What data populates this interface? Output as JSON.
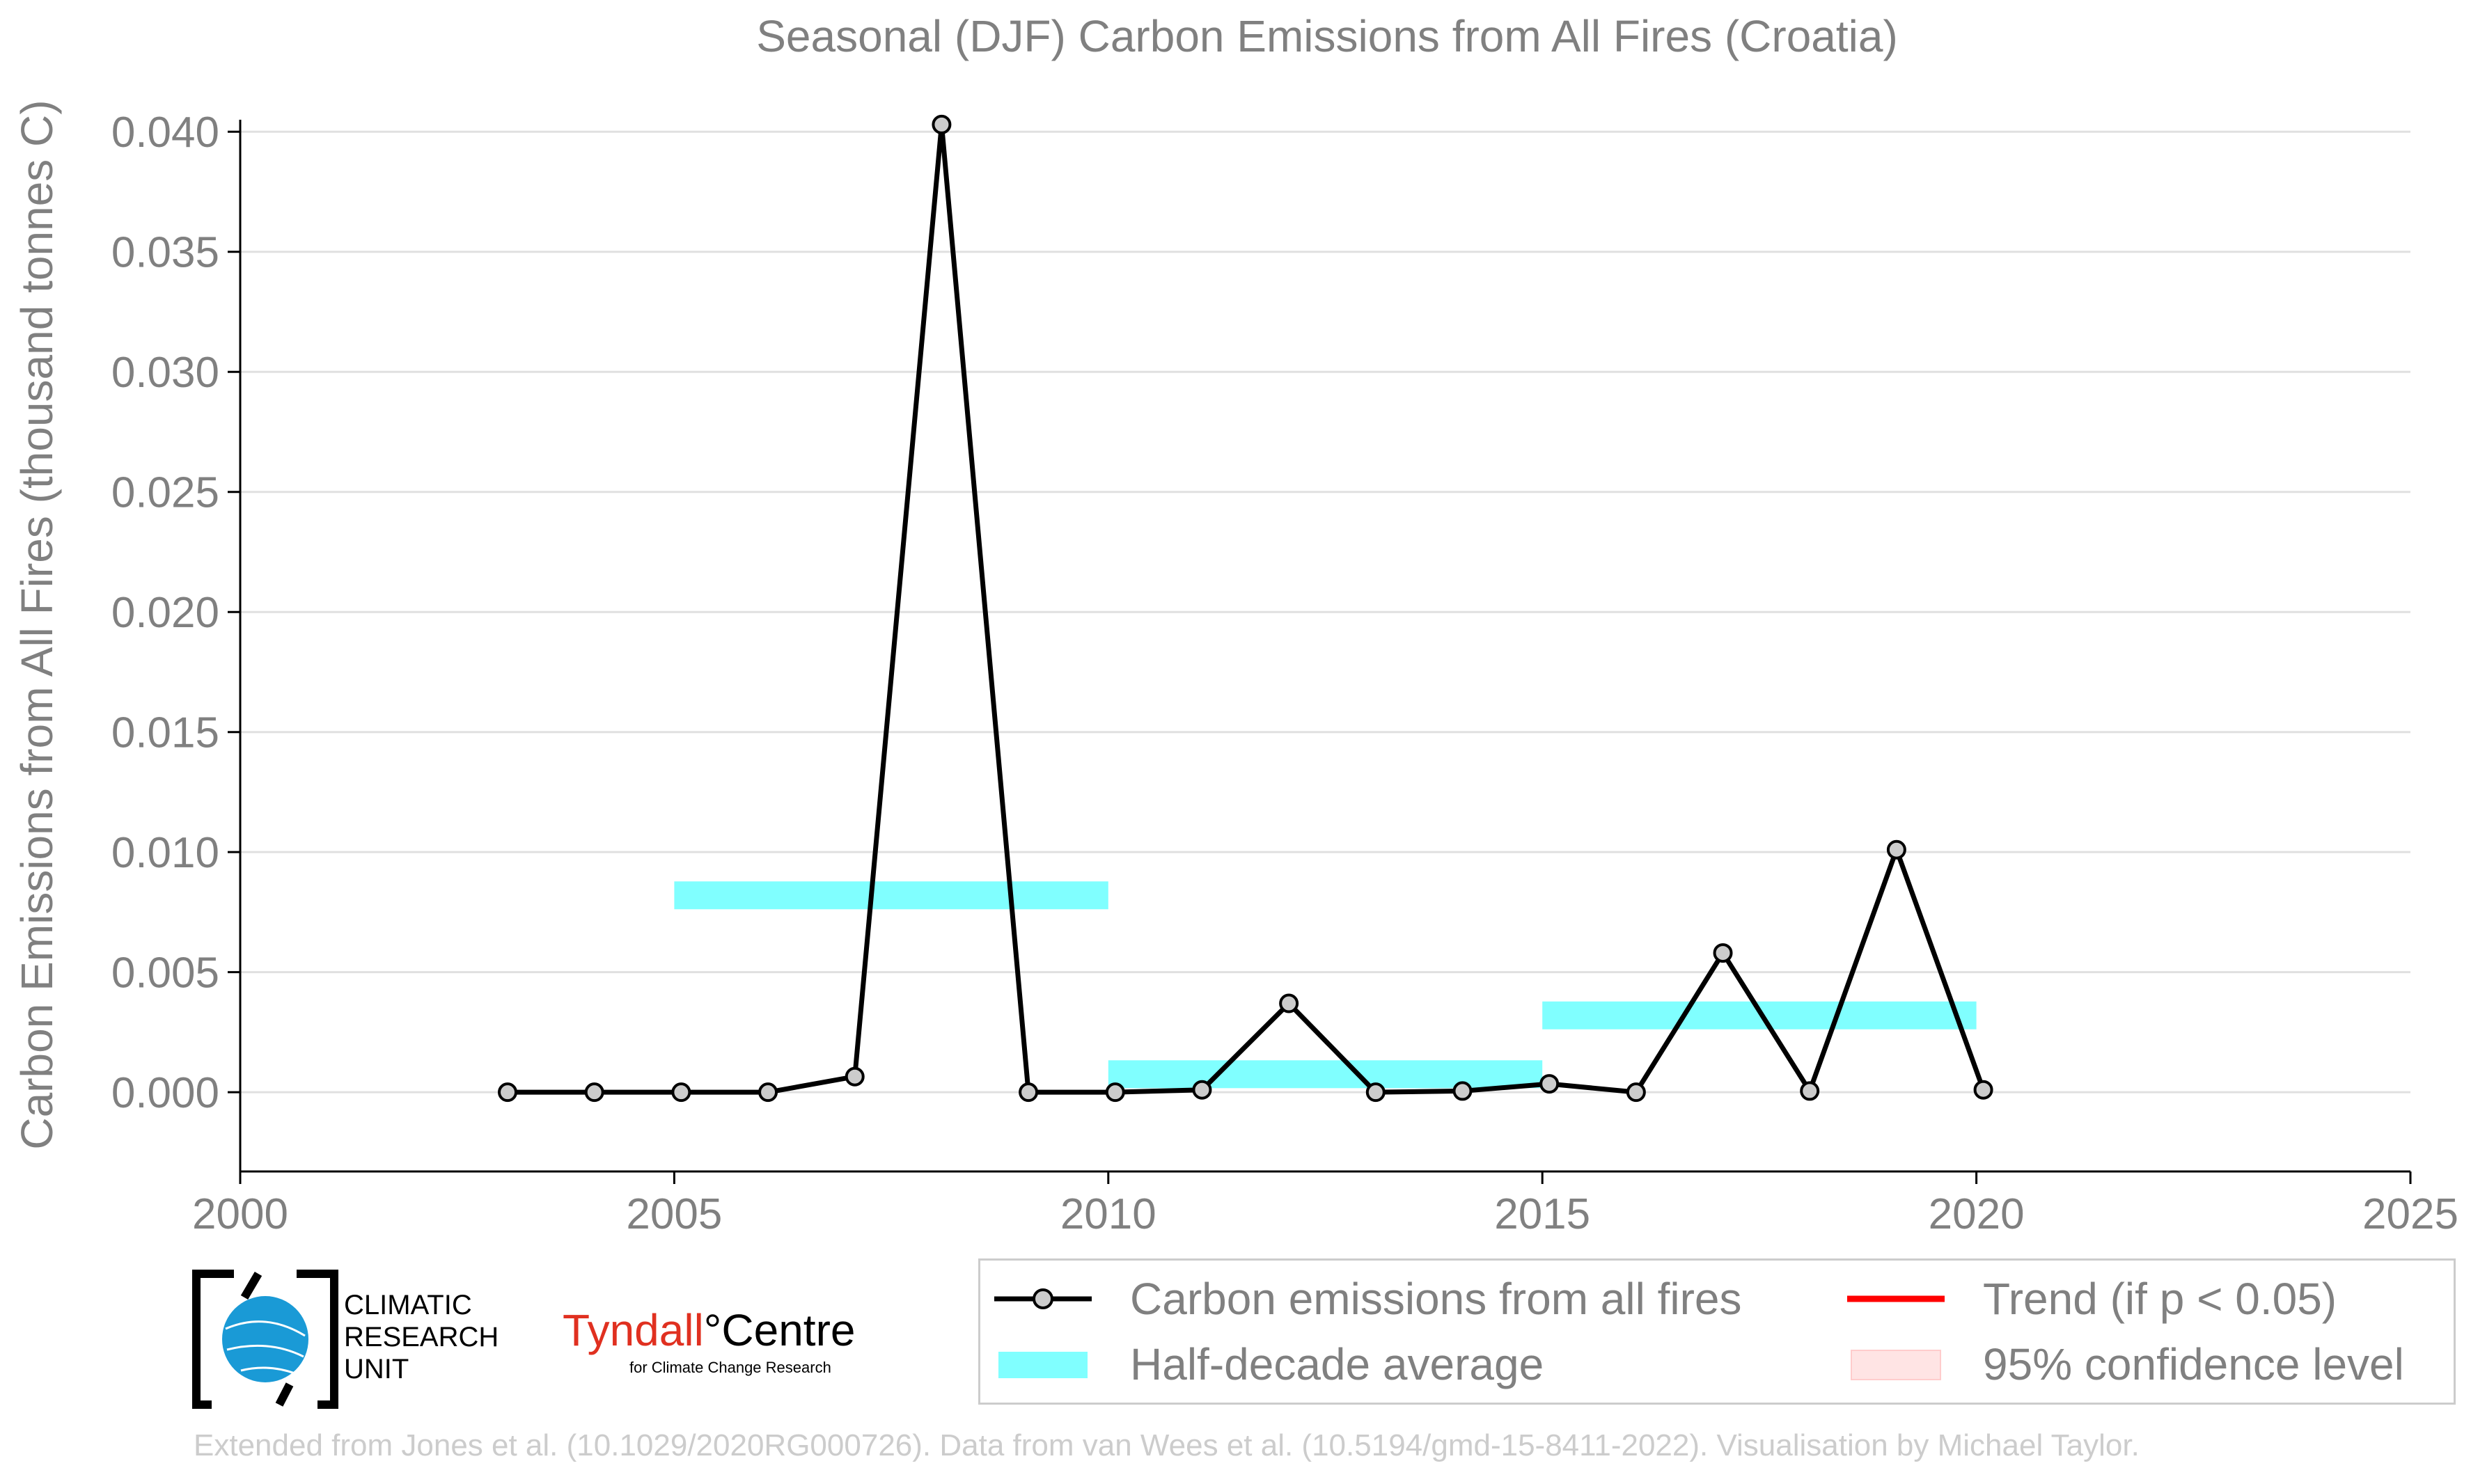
{
  "chart_data": {
    "type": "line",
    "title": "Seasonal (DJF) Carbon Emissions from All Fires (Croatia)",
    "ylabel": "Carbon Emissions from All Fires (thousand tonnes C)",
    "xlabel": "",
    "xlim": [
      2000,
      2025
    ],
    "ylim": [
      -0.0033,
      0.0405
    ],
    "x_ticks": [
      "2000",
      "2005",
      "2010",
      "2015",
      "2020",
      "2025"
    ],
    "y_ticks": [
      "0.000",
      "0.005",
      "0.010",
      "0.015",
      "0.020",
      "0.025",
      "0.030",
      "0.035",
      "0.040"
    ],
    "grid": "horizontal",
    "series": [
      {
        "name": "Carbon emissions from all fires",
        "color": "#000000",
        "marker_color": "#cccccc",
        "x": [
          2003,
          2004,
          2005,
          2006,
          2007,
          2008,
          2009,
          2010,
          2011,
          2012,
          2013,
          2014,
          2015,
          2016,
          2017,
          2018,
          2019,
          2020
        ],
        "values": [
          0.0,
          0.0,
          0.0,
          0.0,
          0.00065,
          0.0403,
          0.0,
          0.0,
          0.0001,
          0.0037,
          0.0,
          5e-05,
          0.00035,
          0.0,
          0.0058,
          5e-05,
          0.0101,
          0.0001
        ]
      }
    ],
    "half_decade_average": [
      {
        "start": 2005,
        "end": 2010,
        "value": 0.0082
      },
      {
        "start": 2010,
        "end": 2015,
        "value": 0.00075
      },
      {
        "start": 2015,
        "end": 2020,
        "value": 0.0032
      }
    ],
    "half_decade_color": "#80ffff",
    "legend": {
      "placement": "bottom-right",
      "entries": [
        {
          "label": "Carbon emissions from all fires",
          "symbol": "line-marker",
          "color": "#000000"
        },
        {
          "label": "Trend (if p < 0.05)",
          "symbol": "line",
          "color": "#ff0000"
        },
        {
          "label": "Half-decade average",
          "symbol": "band",
          "color": "#80ffff"
        },
        {
          "label": "95% confidence level",
          "symbol": "patch",
          "color": "#ffe0e0"
        }
      ]
    }
  },
  "logos": {
    "cru": "CLIMATIC\nRESEARCH\nUNIT",
    "tyndall_main": "Tyndall",
    "tyndall_degree": "°",
    "tyndall_centre": "Centre",
    "tyndall_sub": "for Climate Change Research"
  },
  "footer": "Extended from Jones et al. (10.1029/2020RG000726). Data from van Wees et al. (10.5194/gmd-15-8411-2022). Visualisation by Michael Taylor."
}
